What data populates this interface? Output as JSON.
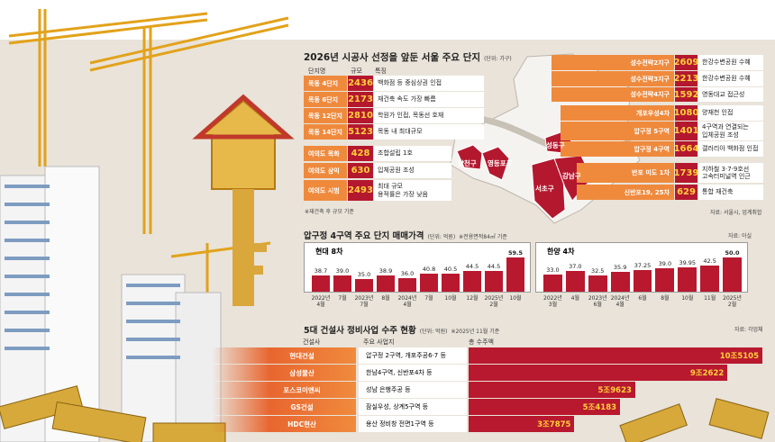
{
  "colors": {
    "orange": "#ef8a3d",
    "red": "#b4182f",
    "number": "#ffd23a",
    "background": "#e9e3d9"
  },
  "complexes": {
    "title": "2026년 시공사 선정을 앞둔 서울 주요 단지",
    "unit": "(단위: 가구)",
    "headers": {
      "name": "단지명",
      "size": "규모",
      "feature": "특징"
    },
    "left_rows": [
      {
        "name": "목동 4단지",
        "size": "2436",
        "feature": "백화점 등 중심상권 인접"
      },
      {
        "name": "목동 6단지",
        "size": "2173",
        "feature": "재건축 속도 가장 빠름"
      },
      {
        "name": "목동 12단지",
        "size": "2810",
        "feature": "학원가 인접, 목동선 호재"
      },
      {
        "name": "목동 14단지",
        "size": "5123",
        "feature": "목동 내 최대규모"
      },
      {
        "name": "여의도 목화",
        "size": "428",
        "feature": "조합설립 1호"
      },
      {
        "name": "여의도 삼익",
        "size": "630",
        "feature": "입체공원 조성"
      },
      {
        "name": "여의도 시범",
        "size": "2493",
        "feature": "최대 규모\n용적률은 가장 낮음"
      }
    ],
    "right_rows": [
      {
        "name": "성수전략2지구",
        "size": "2609",
        "feature": "한강수변공원 수혜"
      },
      {
        "name": "성수전략3지구",
        "size": "2213",
        "feature": "한강수변공원 수혜"
      },
      {
        "name": "성수전략4지구",
        "size": "1592",
        "feature": "영동대교 접근성"
      },
      {
        "name": "개포우성4차",
        "size": "1080",
        "feature": "양재천 인접"
      },
      {
        "name": "압구정 5구역",
        "size": "1401",
        "feature": "4구역과 연결되는\n입체공원 조성"
      },
      {
        "name": "압구정 4구역",
        "size": "1664",
        "feature": "갤러리아 백화점 인접"
      },
      {
        "name": "반포 미도 1차",
        "size": "1739",
        "feature": "지하철 3·7·9호선\n고속터미널역 인근"
      },
      {
        "name": "신반포19, 25차",
        "size": "629",
        "feature": "통합 재건축"
      }
    ],
    "footnote": "※재건축 후 규모 기준",
    "source": "자료: 서울시, 업계취합",
    "districts": [
      "양천구",
      "영등포구",
      "성동구",
      "서초구",
      "강남구"
    ]
  },
  "prices": {
    "title": "압구정 4구역 주요 단지 매매가격",
    "unit": "(단위: 억원)",
    "note": "※전용면적84㎡ 기준",
    "source": "자료: 아실"
  },
  "chart_data": [
    {
      "type": "bar",
      "title": "현대 8차",
      "ylabel": "억원",
      "ylim": [
        20,
        62
      ],
      "categories": [
        "2022년\n4월",
        "7월",
        "2023년\n7월",
        "8월",
        "2024년\n4월",
        "7월",
        "10월",
        "12월",
        "2025년\n2월",
        "10월"
      ],
      "values": [
        38.7,
        39.0,
        35.0,
        38.9,
        36.0,
        40.8,
        40.5,
        44.5,
        44.5,
        59.5
      ],
      "labels": [
        "38.7",
        "39.0",
        "35.0",
        "38.9",
        "36.0",
        "40.8",
        "40.5",
        "44.5",
        "44.5",
        "59.5"
      ]
    },
    {
      "type": "bar",
      "title": "한양 4차",
      "ylabel": "억원",
      "ylim": [
        16,
        52
      ],
      "categories": [
        "2022년\n3월",
        "4월",
        "2023년\n6월",
        "2024년\n4월",
        "6월",
        "8월",
        "10월",
        "11월",
        "2025년\n2월"
      ],
      "values": [
        33.0,
        37.0,
        32.5,
        35.9,
        37.25,
        39.0,
        39.95,
        42.5,
        50.0
      ],
      "labels": [
        "33.0",
        "37.0",
        "32.5",
        "35.9",
        "37.25",
        "39.0",
        "39.95",
        "42.5",
        "50.0"
      ]
    },
    {
      "type": "bar",
      "orientation": "horizontal",
      "title": "5대 건설사 정비사업 수주 현황",
      "unit": "(단위: 억원)",
      "note": "※2025년 11월 기준",
      "source": "자료: 각업체",
      "headers": {
        "company": "건설사",
        "sites": "주요 사업지",
        "total": "총 수주액"
      },
      "categories": [
        "현대건설",
        "삼성물산",
        "포스코이앤씨",
        "GS건설",
        "HDC현산"
      ],
      "sites": [
        "압구정 2구역, 개포주공6·7 등",
        "한남4구역, 신반포4차 등",
        "성남 은행주공 등",
        "잠실우성, 상계5구역 등",
        "용산 정비창 전면1구역 등"
      ],
      "values": [
        105105,
        92622,
        59623,
        54183,
        37875
      ],
      "labels": [
        "10조5105",
        "9조2622",
        "5조9623",
        "5조4183",
        "3조7875"
      ]
    }
  ]
}
